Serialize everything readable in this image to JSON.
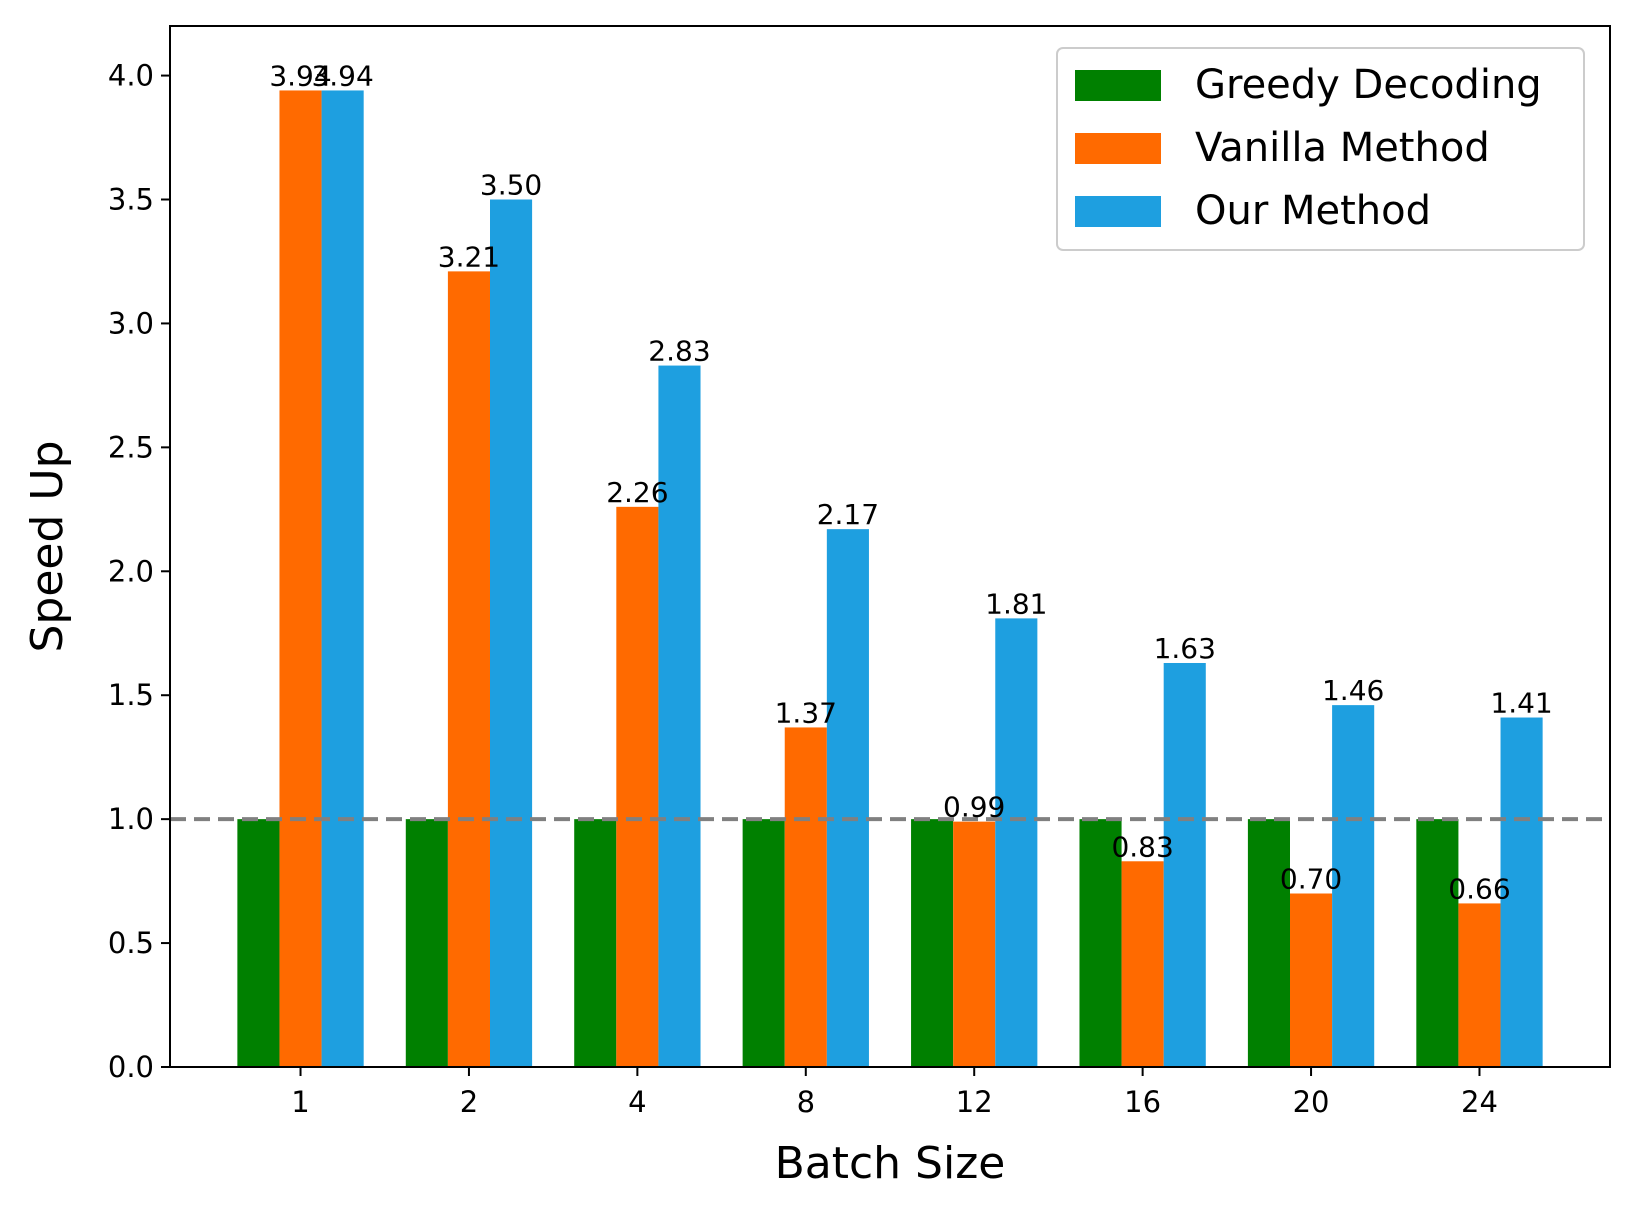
{
  "chart_data": {
    "type": "bar",
    "title": "",
    "xlabel": "Batch Size",
    "ylabel": "Speed Up",
    "categories": [
      "1",
      "2",
      "4",
      "8",
      "12",
      "16",
      "20",
      "24"
    ],
    "series": [
      {
        "name": "Greedy Decoding",
        "color": "#008000",
        "values": [
          1,
          1,
          1,
          1,
          1,
          1,
          1,
          1
        ],
        "show_labels": false
      },
      {
        "name": "Vanilla Method",
        "color": "#ff6a00",
        "values": [
          3.94,
          3.21,
          2.26,
          1.37,
          0.99,
          0.83,
          0.7,
          0.66
        ],
        "show_labels": true
      },
      {
        "name": "Our Method",
        "color": "#1e9fe0",
        "values": [
          3.94,
          3.5,
          2.83,
          2.17,
          1.81,
          1.63,
          1.46,
          1.41
        ],
        "show_labels": true
      }
    ],
    "ylim": [
      0,
      4.2
    ],
    "yticks": [
      "0.0",
      "0.5",
      "1.0",
      "1.5",
      "2.0",
      "2.5",
      "3.0",
      "3.5",
      "4.0"
    ],
    "reference_line": {
      "y": 1.0,
      "style": "dashed",
      "color": "#808080"
    },
    "legend_position": "top-right",
    "grid": false
  }
}
